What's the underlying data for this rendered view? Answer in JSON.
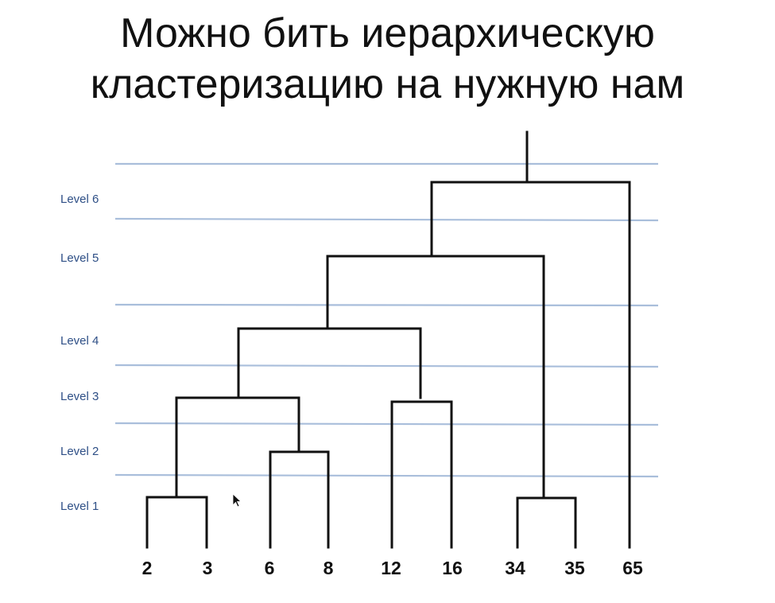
{
  "title": {
    "line1": "Можно бить иерархическую",
    "line2": "кластеризацию на нужную нам"
  },
  "levels": [
    "Level 6",
    "Level 5",
    "Level 4",
    "Level 3",
    "Level 2",
    "Level 1"
  ],
  "leaves": [
    "2",
    "3",
    "6",
    "8",
    "12",
    "16",
    "34",
    "35",
    "65"
  ],
  "colors": {
    "level_line": "#a9bedb",
    "level_label": "#2e4f86",
    "branch": "#111111"
  }
}
